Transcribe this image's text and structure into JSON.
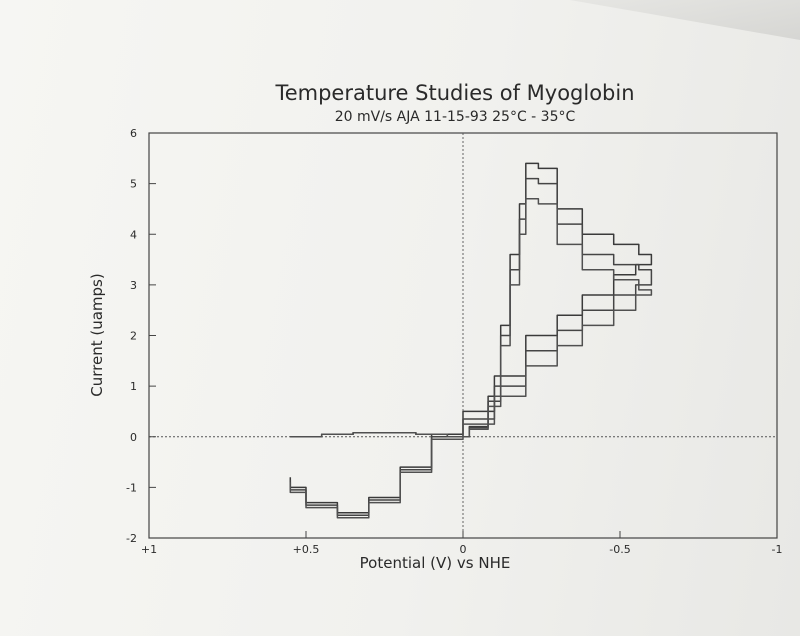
{
  "chart_data": {
    "type": "line",
    "title": "Temperature Studies of Myoglobin",
    "subtitle": "20 mV/s  AJA  11-15-93  25°C - 35°C",
    "xlabel": "Potential (V) vs NHE",
    "ylabel": "Current (uamps)",
    "xlim": [
      1,
      -1
    ],
    "ylim": [
      -2,
      6
    ],
    "x_ticks": [
      1,
      0.5,
      0,
      -0.5,
      -1
    ],
    "x_tick_labels": [
      "+1",
      "+0.5",
      "0",
      "-0.5",
      "-1"
    ],
    "y_ticks": [
      -2,
      -1,
      0,
      1,
      2,
      3,
      4,
      5,
      6
    ],
    "y_tick_labels": [
      "-2",
      "-1",
      "0",
      "1",
      "2",
      "3",
      "4",
      "5",
      "6"
    ],
    "grid": false,
    "zero_lines": true,
    "series": [
      {
        "values": [
          [
            0.55,
            0.0
          ],
          [
            0.45,
            0.05
          ],
          [
            0.35,
            0.08
          ],
          [
            0.25,
            0.08
          ],
          [
            0.15,
            0.05
          ],
          [
            0.05,
            0.0
          ],
          [
            -0.02,
            0.2
          ],
          [
            -0.08,
            0.8
          ],
          [
            -0.12,
            2.2
          ],
          [
            -0.15,
            3.6
          ],
          [
            -0.18,
            4.6
          ],
          [
            -0.2,
            5.4
          ],
          [
            -0.24,
            5.3
          ],
          [
            -0.3,
            4.5
          ],
          [
            -0.38,
            4.0
          ],
          [
            -0.48,
            3.8
          ],
          [
            -0.56,
            3.6
          ],
          [
            -0.6,
            3.4
          ],
          [
            -0.55,
            3.2
          ],
          [
            -0.48,
            2.8
          ],
          [
            -0.38,
            2.4
          ],
          [
            -0.3,
            2.0
          ],
          [
            -0.2,
            1.2
          ],
          [
            -0.1,
            0.5
          ],
          [
            0.0,
            0.05
          ],
          [
            0.1,
            -0.6
          ],
          [
            0.2,
            -1.2
          ],
          [
            0.3,
            -1.5
          ],
          [
            0.4,
            -1.3
          ],
          [
            0.5,
            -1.0
          ],
          [
            0.55,
            -0.8
          ]
        ]
      },
      {
        "values": [
          [
            0.55,
            0.0
          ],
          [
            0.45,
            0.05
          ],
          [
            0.35,
            0.08
          ],
          [
            0.25,
            0.08
          ],
          [
            0.15,
            0.05
          ],
          [
            0.05,
            0.0
          ],
          [
            -0.02,
            0.18
          ],
          [
            -0.08,
            0.7
          ],
          [
            -0.12,
            2.0
          ],
          [
            -0.15,
            3.3
          ],
          [
            -0.18,
            4.3
          ],
          [
            -0.2,
            5.1
          ],
          [
            -0.24,
            5.0
          ],
          [
            -0.3,
            4.2
          ],
          [
            -0.38,
            3.6
          ],
          [
            -0.48,
            3.4
          ],
          [
            -0.56,
            3.3
          ],
          [
            -0.6,
            3.0
          ],
          [
            -0.55,
            2.8
          ],
          [
            -0.48,
            2.5
          ],
          [
            -0.38,
            2.1
          ],
          [
            -0.3,
            1.7
          ],
          [
            -0.2,
            1.0
          ],
          [
            -0.1,
            0.35
          ],
          [
            0.0,
            0.0
          ],
          [
            0.1,
            -0.65
          ],
          [
            0.2,
            -1.25
          ],
          [
            0.3,
            -1.55
          ],
          [
            0.4,
            -1.35
          ],
          [
            0.5,
            -1.05
          ],
          [
            0.55,
            -0.85
          ]
        ]
      },
      {
        "values": [
          [
            0.55,
            0.0
          ],
          [
            0.45,
            0.05
          ],
          [
            0.35,
            0.08
          ],
          [
            0.25,
            0.08
          ],
          [
            0.15,
            0.05
          ],
          [
            0.05,
            0.0
          ],
          [
            -0.02,
            0.15
          ],
          [
            -0.08,
            0.6
          ],
          [
            -0.12,
            1.8
          ],
          [
            -0.15,
            3.0
          ],
          [
            -0.18,
            4.0
          ],
          [
            -0.2,
            4.7
          ],
          [
            -0.24,
            4.6
          ],
          [
            -0.3,
            3.8
          ],
          [
            -0.38,
            3.3
          ],
          [
            -0.48,
            3.1
          ],
          [
            -0.56,
            2.9
          ],
          [
            -0.6,
            2.8
          ],
          [
            -0.55,
            2.5
          ],
          [
            -0.48,
            2.2
          ],
          [
            -0.38,
            1.8
          ],
          [
            -0.3,
            1.4
          ],
          [
            -0.2,
            0.8
          ],
          [
            -0.1,
            0.25
          ],
          [
            0.0,
            -0.05
          ],
          [
            0.1,
            -0.7
          ],
          [
            0.2,
            -1.3
          ],
          [
            0.3,
            -1.6
          ],
          [
            0.4,
            -1.4
          ],
          [
            0.5,
            -1.1
          ],
          [
            0.55,
            -0.9
          ]
        ]
      }
    ]
  }
}
